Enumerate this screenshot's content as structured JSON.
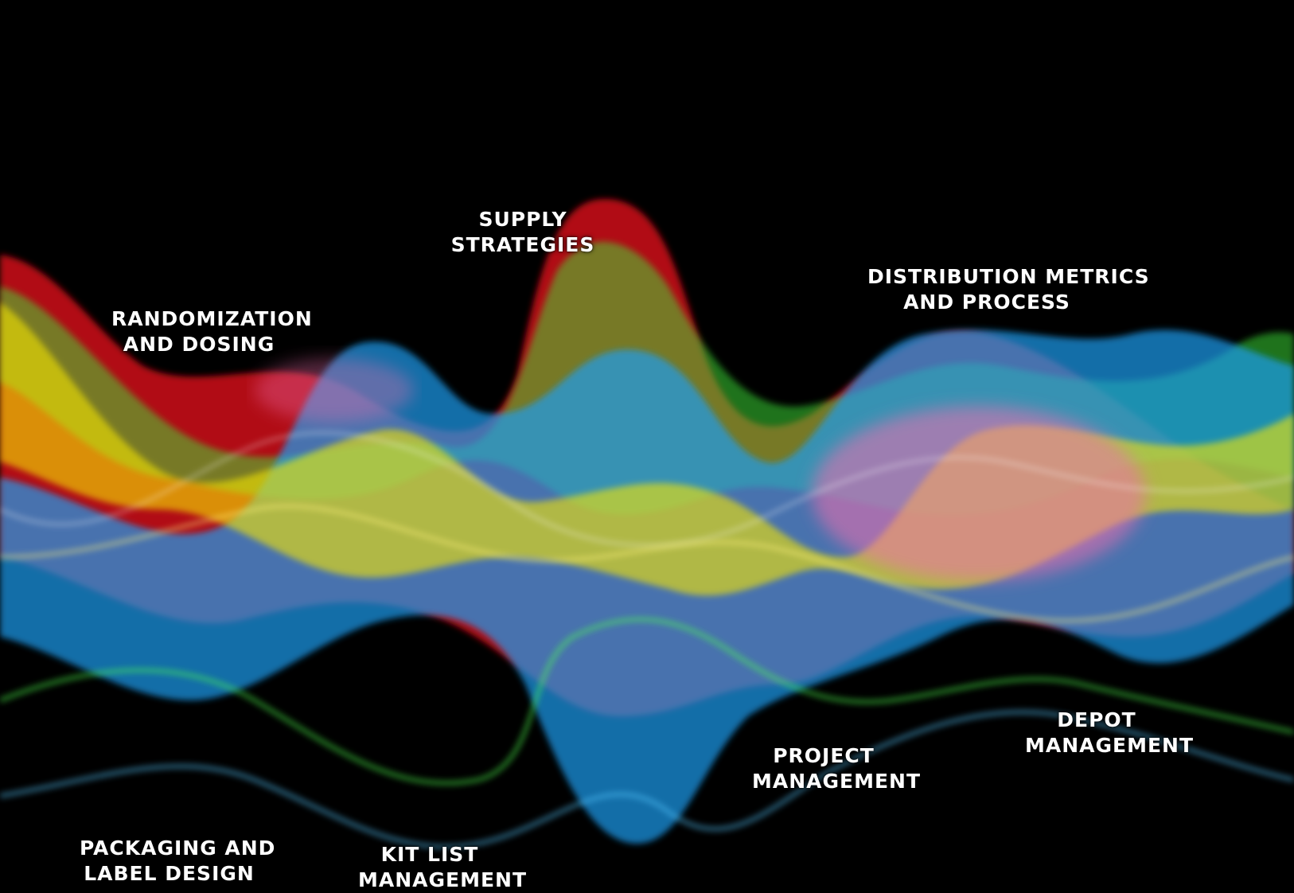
{
  "labels": {
    "supply": {
      "line1": "SUPPLY",
      "line2": "STRATEGIES"
    },
    "randomization": {
      "line1": "RANDOMIZATION",
      "line2": "AND DOSING"
    },
    "distribution": {
      "line1": "DISTRIBUTION METRICS",
      "line2": "AND PROCESS"
    },
    "project": {
      "line1": "PROJECT",
      "line2": "MANAGEMENT"
    },
    "depot": {
      "line1": "DEPOT",
      "line2": "MANAGEMENT"
    },
    "packaging": {
      "line1": "PACKAGING AND",
      "line2": "LABEL DESIGN"
    },
    "kit_list": {
      "line1": "KIT LIST",
      "line2": "MANAGEMENT"
    }
  },
  "colors": {
    "background": "#000000",
    "text": "#ffffff",
    "red": "#d0101a",
    "yellow": "#f5e600",
    "green": "#3ee63a",
    "blue": "#1a9cf0",
    "pink": "#f06fae"
  }
}
